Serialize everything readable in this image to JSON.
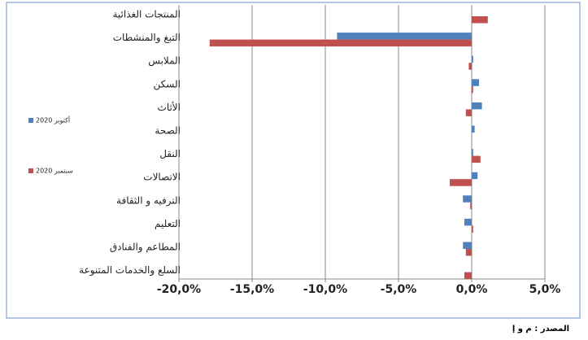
{
  "chart_data": {
    "type": "hbar",
    "categories": [
      "المنتجات الغذائية",
      "التبغ والمنشطات",
      "الملابس",
      "السكن",
      "الأثاث",
      "الصحة",
      "النقل",
      "الاتصالات",
      "الترفيه و الثقافة",
      "التعليم",
      "المطاعم والفنادق",
      "السلع والخدمات المتنوعة"
    ],
    "series": [
      {
        "name": "أكتوبر 2020",
        "color": "#4f81bd",
        "values": [
          0.0,
          -9.2,
          0.1,
          0.5,
          0.7,
          0.2,
          0.1,
          0.4,
          -0.6,
          -0.5,
          -0.6,
          0.0
        ]
      },
      {
        "name": "سبتمبر 2020",
        "color": "#c0504d",
        "values": [
          1.1,
          -17.9,
          -0.2,
          0.1,
          -0.4,
          0.0,
          0.6,
          -1.5,
          -0.1,
          0.1,
          -0.4,
          -0.5
        ]
      }
    ],
    "xlim": [
      -20,
      5
    ],
    "xticks": [
      {
        "value": -20,
        "label": "-20,0%"
      },
      {
        "value": -15,
        "label": "-15,0%"
      },
      {
        "value": -10,
        "label": "-10,0%"
      },
      {
        "value": -5,
        "label": "-5,0%"
      },
      {
        "value": 0,
        "label": "0,0%"
      },
      {
        "value": 5,
        "label": "5,0%"
      }
    ],
    "grid": true,
    "legend": "left",
    "source": "المصدر : م و إ"
  }
}
